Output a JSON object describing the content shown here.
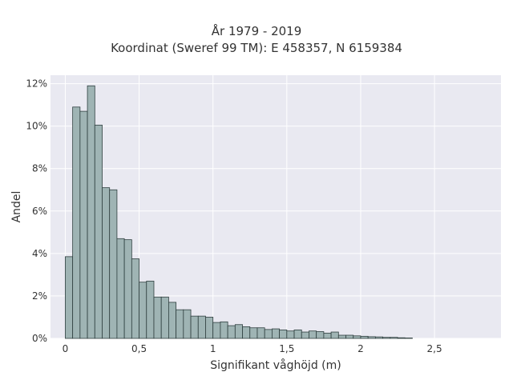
{
  "chart_data": {
    "type": "bar",
    "title_lines": [
      "År 1979 - 2019",
      "Koordinat (Sweref 99 TM): E 458357, N 6159384"
    ],
    "xlabel": "Signifikant våghöjd (m)",
    "ylabel": "Andel",
    "xlim": [
      -0.1,
      2.95
    ],
    "ylim": [
      0,
      12.4
    ],
    "x_ticks": [
      0,
      0.5,
      1,
      1.5,
      2,
      2.5
    ],
    "x_tick_labels": [
      "0",
      "0,5",
      "1",
      "1,5",
      "2",
      "2,5"
    ],
    "y_ticks": [
      0,
      2,
      4,
      6,
      8,
      10,
      12
    ],
    "y_tick_labels": [
      "0%",
      "2%",
      "4%",
      "6%",
      "8%",
      "10%",
      "12%"
    ],
    "bin_width": 0.05,
    "bin_start": 0.0,
    "values": [
      3.85,
      10.9,
      10.7,
      11.9,
      10.05,
      7.1,
      7.0,
      4.7,
      4.65,
      3.75,
      2.65,
      2.7,
      1.95,
      1.95,
      1.7,
      1.35,
      1.35,
      1.05,
      1.05,
      1.0,
      0.75,
      0.78,
      0.6,
      0.65,
      0.55,
      0.5,
      0.5,
      0.42,
      0.45,
      0.4,
      0.35,
      0.4,
      0.3,
      0.35,
      0.32,
      0.25,
      0.3,
      0.15,
      0.15,
      0.12,
      0.1,
      0.08,
      0.07,
      0.05,
      0.05,
      0.03,
      0.02
    ],
    "grid": true,
    "colors": {
      "bar_fill": "#9fb4b4",
      "bar_stroke": "#2f3f3f",
      "plot_bg": "#e9e9f1",
      "grid": "#ffffff",
      "text": "#333333"
    }
  }
}
